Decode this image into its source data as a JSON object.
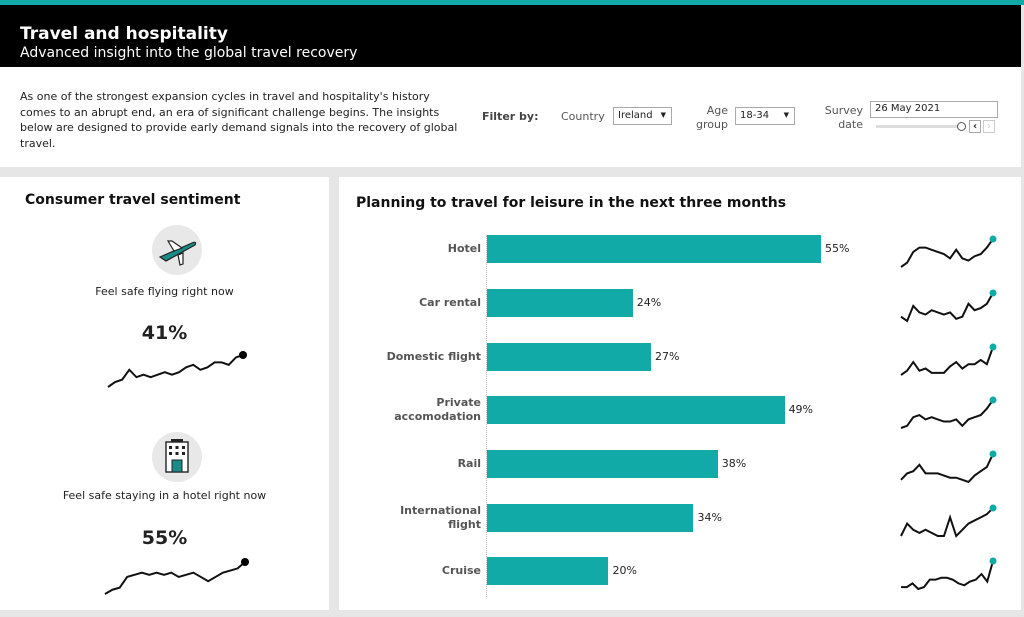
{
  "header": {
    "title": "Travel and hospitality",
    "subtitle": "Advanced insight into the global travel recovery"
  },
  "intro": "As one of the strongest expansion cycles in travel and hospitality's history comes to an abrupt end, an era of significant challenge begins. The insights below are designed to provide early demand signals into the recovery of global travel.",
  "filters": {
    "label": "Filter by:",
    "country_label": "Country",
    "country_value": "Ireland",
    "age_label_1": "Age",
    "age_label_2": "group",
    "age_value": "18-34",
    "date_label_1": "Survey",
    "date_label_2": "date",
    "date_value": "26 May 2021",
    "slider_fraction": 1.0
  },
  "colors": {
    "accent": "#12aaa6",
    "header": "#000000"
  },
  "sentiment": {
    "title": "Consumer travel sentiment",
    "items": [
      {
        "icon": "airplane-icon",
        "label": "Feel safe flying right now",
        "value": "41%",
        "trend": [
          2,
          4,
          5,
          9,
          6,
          7,
          6,
          7,
          8,
          7,
          8,
          10,
          11,
          9,
          10,
          12,
          12,
          11,
          14,
          15
        ]
      },
      {
        "icon": "hotel-icon",
        "label": "Feel safe staying in a hotel right now",
        "value": "55%",
        "trend": [
          2,
          4,
          5,
          10,
          11,
          12,
          11,
          12,
          11,
          12,
          10,
          11,
          12,
          10,
          8,
          10,
          12,
          13,
          14,
          17
        ]
      }
    ]
  },
  "chart_data": {
    "type": "bar",
    "title": "Planning to travel for leisure in the next three months",
    "categories": [
      "Hotel",
      "Car rental",
      "Domestic flight",
      "Private accomodation",
      "Rail",
      "International flight",
      "Cruise"
    ],
    "values": [
      55,
      24,
      27,
      49,
      38,
      34,
      20
    ],
    "labels": [
      "55%",
      "24%",
      "27%",
      "49%",
      "38%",
      "34%",
      "20%"
    ],
    "trends": [
      [
        2,
        4,
        9,
        11,
        11,
        10,
        9,
        8,
        6,
        10,
        6,
        5,
        7,
        8,
        11,
        15
      ],
      [
        5,
        3,
        10,
        7,
        6,
        8,
        7,
        6,
        7,
        4,
        5,
        11,
        8,
        9,
        11,
        16
      ],
      [
        2,
        4,
        8,
        4,
        5,
        3,
        3,
        3,
        6,
        8,
        5,
        7,
        7,
        9,
        7,
        15
      ],
      [
        2,
        3,
        7,
        8,
        6,
        7,
        6,
        5,
        5,
        6,
        3,
        6,
        7,
        8,
        11,
        15
      ],
      [
        2,
        5,
        6,
        9,
        5,
        5,
        5,
        4,
        3,
        3,
        2,
        1,
        4,
        6,
        8,
        14
      ],
      [
        2,
        6,
        4,
        3,
        4,
        3,
        2,
        2,
        8,
        2,
        4,
        6,
        7,
        8,
        9,
        11
      ],
      [
        2,
        2,
        4,
        1,
        2,
        6,
        6,
        7,
        7,
        6,
        4,
        3,
        5,
        6,
        9,
        5,
        16
      ]
    ],
    "xlim": [
      0,
      60
    ]
  }
}
